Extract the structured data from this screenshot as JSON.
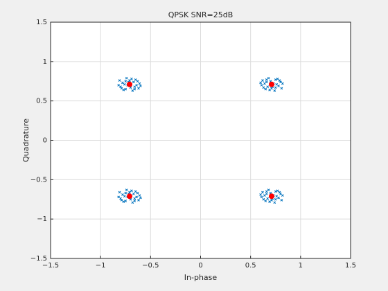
{
  "chart_data": {
    "type": "scatter",
    "title": "QPSK SNR=25dB",
    "xlabel": "In-phase",
    "ylabel": "Quadrature",
    "xlim": [
      -1.5,
      1.5
    ],
    "ylim": [
      -1.5,
      1.5
    ],
    "xticks": [
      {
        "value": -1.5,
        "label": "−1.5"
      },
      {
        "value": -1,
        "label": "−1"
      },
      {
        "value": -0.5,
        "label": "−0.5"
      },
      0,
      0.5,
      1,
      1.5
    ],
    "yticks": [
      {
        "value": -1.5,
        "label": "−1.5"
      },
      {
        "value": -1,
        "label": "−1"
      },
      {
        "value": -0.5,
        "label": "−0.5"
      },
      0,
      0.5,
      1,
      1.5
    ],
    "grid": true,
    "series": [
      {
        "color": "#0072bd",
        "marker": "x",
        "x": [
          0.73,
          0.66,
          0.78,
          0.63,
          0.75,
          0.69,
          0.8,
          0.62,
          0.72,
          0.77,
          0.65,
          0.74,
          0.68,
          0.81,
          0.61,
          0.76,
          0.7,
          0.79,
          0.64,
          0.71,
          0.67,
          0.82,
          0.6,
          0.75,
          0.66,
          -0.73,
          -0.66,
          -0.78,
          -0.63,
          -0.75,
          -0.69,
          -0.8,
          -0.62,
          -0.72,
          -0.77,
          -0.65,
          -0.74,
          -0.68,
          -0.81,
          -0.61,
          -0.76,
          -0.7,
          -0.79,
          -0.64,
          -0.71,
          -0.67,
          -0.82,
          -0.6,
          -0.75,
          -0.66,
          -0.73,
          -0.66,
          -0.78,
          -0.63,
          -0.75,
          -0.69,
          -0.8,
          -0.62,
          -0.72,
          -0.77,
          -0.65,
          -0.74,
          -0.68,
          -0.81,
          -0.61,
          -0.76,
          -0.7,
          -0.79,
          -0.64,
          -0.71,
          -0.67,
          -0.82,
          -0.6,
          -0.75,
          -0.66,
          0.73,
          0.66,
          0.78,
          0.63,
          0.75,
          0.69,
          0.8,
          0.62,
          0.72,
          0.77,
          0.65,
          0.74,
          0.68,
          0.81,
          0.61,
          0.76,
          0.7,
          0.79,
          0.64,
          0.71,
          0.67,
          0.82,
          0.6,
          0.75,
          0.66
        ],
        "y": [
          0.72,
          0.74,
          0.69,
          0.67,
          0.77,
          0.64,
          0.74,
          0.76,
          0.68,
          0.78,
          0.65,
          0.63,
          0.79,
          0.66,
          0.7,
          0.71,
          0.75,
          0.76,
          0.72,
          0.66,
          0.68,
          0.72,
          0.73,
          0.67,
          0.77,
          0.7,
          0.68,
          0.73,
          0.75,
          0.65,
          0.78,
          0.68,
          0.66,
          0.74,
          0.64,
          0.77,
          0.79,
          0.63,
          0.76,
          0.72,
          0.71,
          0.67,
          0.66,
          0.7,
          0.76,
          0.74,
          0.7,
          0.69,
          0.75,
          0.65,
          -0.72,
          -0.74,
          -0.69,
          -0.67,
          -0.77,
          -0.64,
          -0.74,
          -0.76,
          -0.68,
          -0.78,
          -0.65,
          -0.63,
          -0.79,
          -0.66,
          -0.7,
          -0.71,
          -0.75,
          -0.76,
          -0.72,
          -0.66,
          -0.68,
          -0.72,
          -0.73,
          -0.67,
          -0.77,
          -0.7,
          -0.68,
          -0.73,
          -0.75,
          -0.65,
          -0.78,
          -0.68,
          -0.66,
          -0.74,
          -0.64,
          -0.77,
          -0.79,
          -0.63,
          -0.76,
          -0.72,
          -0.71,
          -0.67,
          -0.66,
          -0.7,
          -0.76,
          -0.74,
          -0.7,
          -0.69,
          -0.75,
          -0.65
        ]
      },
      {
        "color": "#ff0000",
        "marker": "o",
        "x": [
          0.71,
          -0.71,
          -0.71,
          0.71
        ],
        "y": [
          0.71,
          0.71,
          -0.71,
          -0.71
        ]
      }
    ]
  }
}
